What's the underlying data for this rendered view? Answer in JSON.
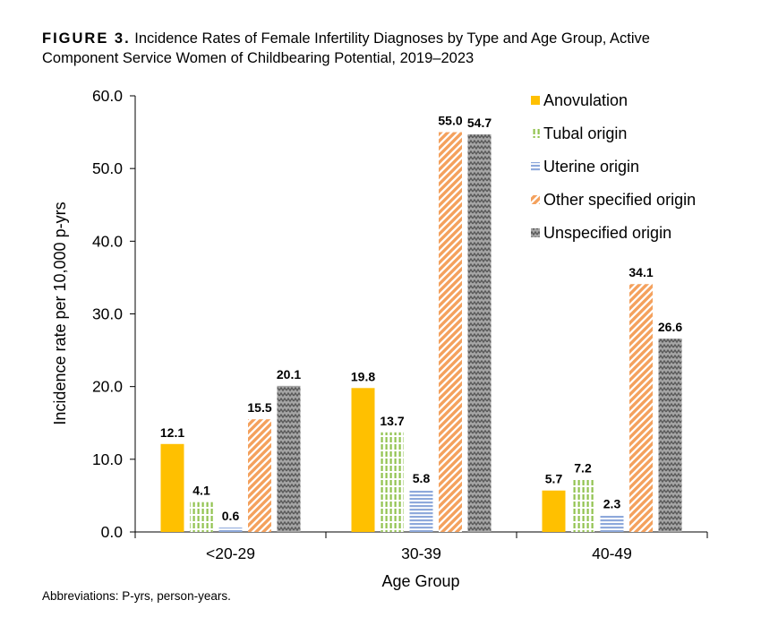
{
  "caption": {
    "label": "FIGURE 3.",
    "text": "Incidence Rates of Female Infertility Diagnoses by Type and Age Group, Active Component Service Women of Childbearing Potential, 2019–2023"
  },
  "footnote": "Abbreviations: P-yrs, person-years.",
  "chart_data": {
    "type": "bar",
    "xlabel": "Age Group",
    "ylabel": "Incidence rate per 10,000 p-yrs",
    "ylim": [
      0,
      60
    ],
    "yticks": [
      "0.0",
      "10.0",
      "20.0",
      "30.0",
      "40.0",
      "50.0",
      "60.0"
    ],
    "categories": [
      "<20-29",
      "30-39",
      "40-49"
    ],
    "legend_position": "top-right",
    "series": [
      {
        "name": "Anovulation",
        "values": [
          12.1,
          19.8,
          5.7
        ],
        "labels": [
          "12.1",
          "19.8",
          "5.7"
        ],
        "color": "#FFC000",
        "pattern": "solid"
      },
      {
        "name": "Tubal origin",
        "values": [
          4.1,
          13.7,
          7.2
        ],
        "labels": [
          "4.1",
          "13.7",
          "7.2"
        ],
        "color": "#92C350",
        "pattern": "vertical-dashes"
      },
      {
        "name": "Uterine origin",
        "values": [
          0.6,
          5.8,
          2.3
        ],
        "labels": [
          "0.6",
          "5.8",
          "2.3"
        ],
        "color": "#8EA9DB",
        "pattern": "horizontal-lines"
      },
      {
        "name": "Other specified origin",
        "values": [
          15.5,
          55.0,
          34.1
        ],
        "labels": [
          "15.5",
          "55.0",
          "34.1"
        ],
        "color": "#F4A15D",
        "pattern": "diagonal-stripes"
      },
      {
        "name": "Unspecified origin",
        "values": [
          20.1,
          54.7,
          26.6
        ],
        "labels": [
          "20.1",
          "54.7",
          "26.6"
        ],
        "color": "#7F7F7F",
        "pattern": "zigzag"
      }
    ]
  }
}
